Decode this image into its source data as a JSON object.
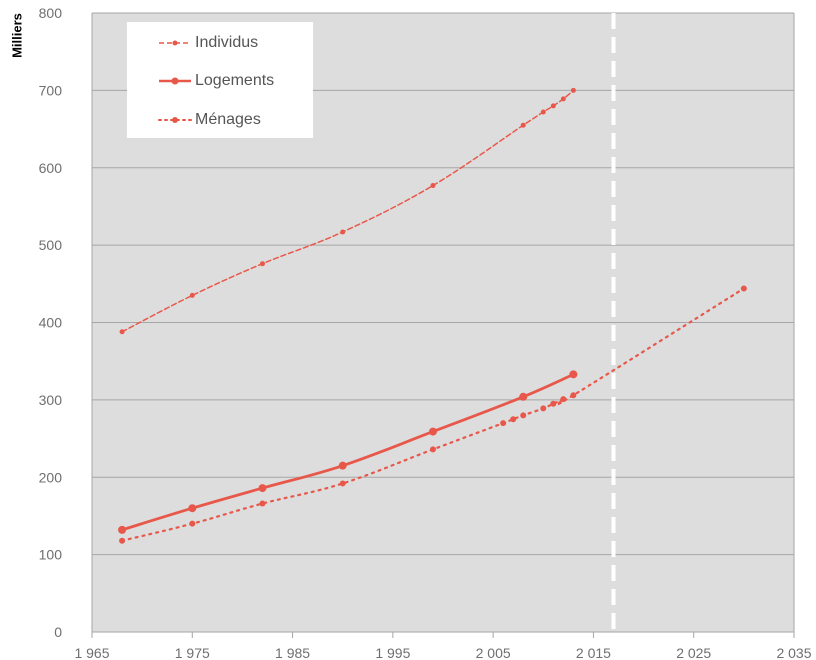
{
  "chart_data": {
    "type": "line",
    "ylabel": "Milliers",
    "xlim": [
      1965,
      2035
    ],
    "ylim": [
      0,
      800
    ],
    "x_ticks": [
      "1 965",
      "1 975",
      "1 985",
      "1 995",
      "2 005",
      "2 015",
      "2 025",
      "2 035"
    ],
    "y_ticks": [
      "0",
      "100",
      "200",
      "300",
      "400",
      "500",
      "600",
      "700",
      "800"
    ],
    "grid": "horizontal",
    "legend_position": "top-left",
    "reference_line_x": 2017,
    "colors": {
      "series": "#e8584a",
      "plot_background": "#dddddd",
      "grid": "#a6a6a6",
      "reference_line": "#ffffff"
    },
    "series": [
      {
        "name": "Individus",
        "style": "dashed",
        "points": [
          [
            1968,
            388
          ],
          [
            1975,
            435
          ],
          [
            1982,
            476
          ],
          [
            1990,
            517
          ],
          [
            1999,
            577
          ],
          [
            2008,
            655
          ],
          [
            2010,
            672
          ],
          [
            2011,
            680
          ],
          [
            2012,
            689
          ],
          [
            2013,
            700
          ]
        ]
      },
      {
        "name": "Logements",
        "style": "solid",
        "points": [
          [
            1968,
            132
          ],
          [
            1975,
            160
          ],
          [
            1982,
            186
          ],
          [
            1990,
            215
          ],
          [
            1999,
            259
          ],
          [
            2008,
            304
          ],
          [
            2013,
            333
          ]
        ]
      },
      {
        "name": "Ménages",
        "style": "dotted",
        "points": [
          [
            1968,
            118
          ],
          [
            1975,
            140
          ],
          [
            1982,
            166
          ],
          [
            1990,
            192
          ],
          [
            1999,
            236
          ],
          [
            2006,
            270
          ],
          [
            2007,
            275
          ],
          [
            2008,
            280
          ],
          [
            2010,
            289
          ],
          [
            2011,
            295
          ],
          [
            2012,
            301
          ],
          [
            2013,
            306
          ],
          [
            2030,
            444
          ]
        ]
      }
    ]
  }
}
